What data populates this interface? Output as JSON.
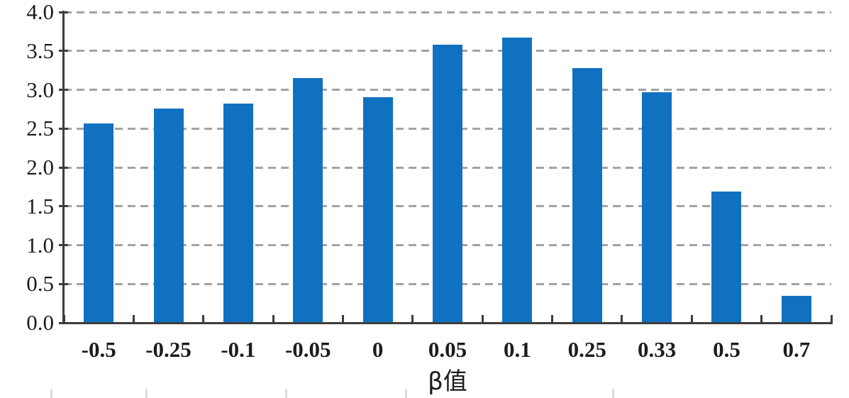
{
  "chart_data": {
    "type": "bar",
    "title": "",
    "xlabel": "β值",
    "ylabel": "",
    "categories": [
      "-0.5",
      "-0.25",
      "-0.1",
      "-0.05",
      "0",
      "0.05",
      "0.1",
      "0.25",
      "0.33",
      "0.5",
      "0.7"
    ],
    "values": [
      2.57,
      2.76,
      2.82,
      3.15,
      2.9,
      3.58,
      3.67,
      3.28,
      2.97,
      1.69,
      0.35
    ],
    "ylim": [
      0.0,
      4.0
    ],
    "ytick_step": 0.5,
    "ytick_labels": [
      "0.0",
      "0.5",
      "1.0",
      "1.5",
      "2.0",
      "2.5",
      "3.0",
      "3.5",
      "4.0"
    ],
    "grid": "horizontal-dashed",
    "legend_position": "none",
    "colors": {
      "bar": "#1171c1",
      "axis": "#3d3d3d",
      "gridline": "#a3a3a3",
      "text": "#1c1c1c",
      "artifact_tick": "#dcdcdc"
    }
  }
}
